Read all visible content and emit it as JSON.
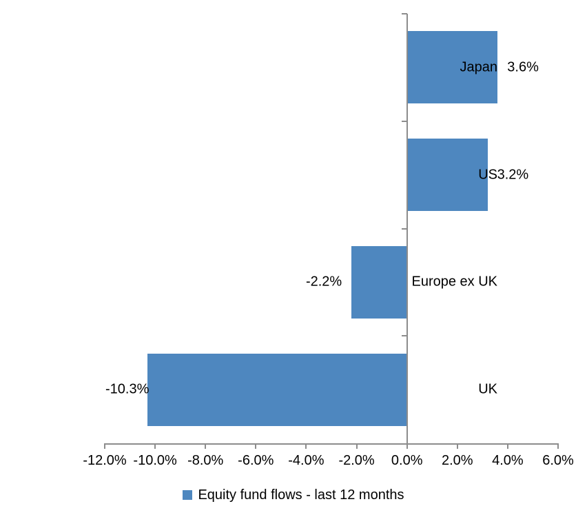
{
  "chart_data": {
    "type": "bar",
    "orientation": "horizontal",
    "title": "",
    "categories": [
      "Japan",
      "US",
      "Europe ex UK",
      "UK"
    ],
    "series": [
      {
        "name": "Equity fund flows - last 12 months",
        "values": [
          3.6,
          3.2,
          -2.2,
          -10.3
        ]
      }
    ],
    "value_labels": [
      "3.6%",
      "3.2%",
      "-2.2%",
      "-10.3%"
    ],
    "x_axis": {
      "min": -12,
      "max": 6,
      "tick_step": 2,
      "tick_labels": [
        "-12.0%",
        "-10.0%",
        "-8.0%",
        "-6.0%",
        "-4.0%",
        "-2.0%",
        "0.0%",
        "2.0%",
        "4.0%",
        "6.0%"
      ]
    },
    "grid": false,
    "legend": {
      "position": "bottom",
      "label": "Equity fund flows - last 12 months"
    },
    "colors": {
      "bar": "#4E87BF",
      "axis": "#8C8C8C",
      "text": "#000000",
      "background": "#FFFFFF"
    }
  }
}
